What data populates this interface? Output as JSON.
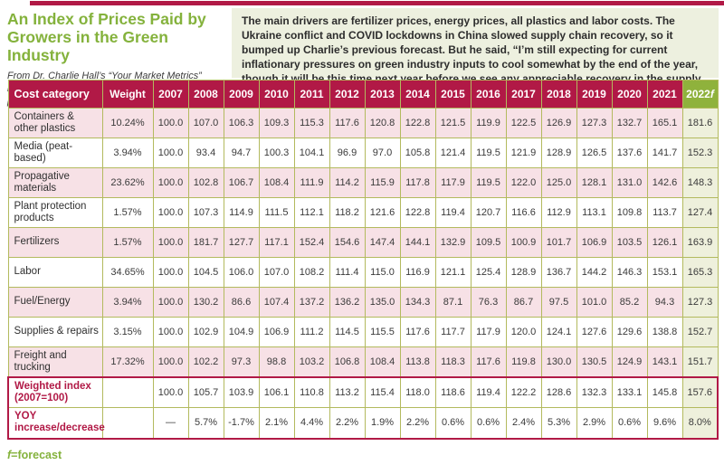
{
  "header": {
    "title": "An Index of Prices Paid by Growers in the Green Industry",
    "subtitle": "From Dr. Charlie Hall’s “Your Market Metrics” report (yourmarketmetrics.com), used with his permission",
    "paragraph": "The main drivers are fertilizer prices, energy prices, all plastics and labor costs. The Ukraine conflict and COVID lockdowns in China slowed supply chain recovery, so it bumped up Charlie’s previous forecast. But he said, “I’m still expecting for current inflationary pressures on green industry inputs to cool somewhat by the end of the year, though it will be this time next year before we see any appreciable recovery in the supply chain.”"
  },
  "colors": {
    "accent_crimson": "#b11946",
    "accent_green": "#84b23c",
    "forecast_header_green": "#8fb23c",
    "row_pink": "#f7e1e6",
    "forecast_cell_tint": "#eef0dc",
    "intro_bg": "#edf0df",
    "grid_olive": "#b3ba5e"
  },
  "chart_data": {
    "type": "table",
    "title": "An Index of Prices Paid by Growers in the Green Industry",
    "columns": [
      "Cost category",
      "Weight",
      "2007",
      "2008",
      "2009",
      "2010",
      "2011",
      "2012",
      "2013",
      "2014",
      "2015",
      "2016",
      "2017",
      "2018",
      "2019",
      "2020",
      "2021",
      "2022f"
    ],
    "rows": [
      {
        "label": "Containers & other plastics",
        "weight": "10.24%",
        "values": [
          "100.0",
          "107.0",
          "106.3",
          "109.3",
          "115.3",
          "117.6",
          "120.8",
          "122.8",
          "121.5",
          "119.9",
          "122.5",
          "126.9",
          "127.3",
          "132.7",
          "165.1",
          "181.6"
        ]
      },
      {
        "label": "Media (peat-based)",
        "weight": "3.94%",
        "values": [
          "100.0",
          "93.4",
          "94.7",
          "100.3",
          "104.1",
          "96.9",
          "97.0",
          "105.8",
          "121.4",
          "119.5",
          "121.9",
          "128.9",
          "126.5",
          "137.6",
          "141.7",
          "152.3"
        ]
      },
      {
        "label": "Propagative materials",
        "weight": "23.62%",
        "values": [
          "100.0",
          "102.8",
          "106.7",
          "108.4",
          "111.9",
          "114.2",
          "115.9",
          "117.8",
          "117.9",
          "119.5",
          "122.0",
          "125.0",
          "128.1",
          "131.0",
          "142.6",
          "148.3"
        ]
      },
      {
        "label": "Plant protection products",
        "weight": "1.57%",
        "values": [
          "100.0",
          "107.3",
          "114.9",
          "111.5",
          "112.1",
          "118.2",
          "121.6",
          "122.8",
          "119.4",
          "120.7",
          "116.6",
          "112.9",
          "113.1",
          "109.8",
          "113.7",
          "127.4"
        ]
      },
      {
        "label": "Fertilizers",
        "weight": "1.57%",
        "values": [
          "100.0",
          "181.7",
          "127.7",
          "117.1",
          "152.4",
          "154.6",
          "147.4",
          "144.1",
          "132.9",
          "109.5",
          "100.9",
          "101.7",
          "106.9",
          "103.5",
          "126.1",
          "163.9"
        ]
      },
      {
        "label": "Labor",
        "weight": "34.65%",
        "values": [
          "100.0",
          "104.5",
          "106.0",
          "107.0",
          "108.2",
          "111.4",
          "115.0",
          "116.9",
          "121.1",
          "125.4",
          "128.9",
          "136.7",
          "144.2",
          "146.3",
          "153.1",
          "165.3"
        ]
      },
      {
        "label": "Fuel/Energy",
        "weight": "3.94%",
        "values": [
          "100.0",
          "130.2",
          "86.6",
          "107.4",
          "137.2",
          "136.2",
          "135.0",
          "134.3",
          "87.1",
          "76.3",
          "86.7",
          "97.5",
          "101.0",
          "85.2",
          "94.3",
          "127.3"
        ]
      },
      {
        "label": "Supplies & repairs",
        "weight": "3.15%",
        "values": [
          "100.0",
          "102.9",
          "104.9",
          "106.9",
          "111.2",
          "114.5",
          "115.5",
          "117.6",
          "117.7",
          "117.9",
          "120.0",
          "124.1",
          "127.6",
          "129.6",
          "138.8",
          "152.7"
        ]
      },
      {
        "label": "Freight and trucking",
        "weight": "17.32%",
        "values": [
          "100.0",
          "102.2",
          "97.3",
          "98.8",
          "103.2",
          "106.8",
          "108.4",
          "113.8",
          "118.3",
          "117.6",
          "119.8",
          "130.0",
          "130.5",
          "124.9",
          "143.1",
          "151.7"
        ]
      }
    ],
    "summary_rows": [
      {
        "label": "Weighted index (2007=100)",
        "weight": "",
        "values": [
          "100.0",
          "105.7",
          "103.9",
          "106.1",
          "110.8",
          "113.2",
          "115.4",
          "118.0",
          "118.6",
          "119.4",
          "122.2",
          "128.6",
          "132.3",
          "133.1",
          "145.8",
          "157.6"
        ]
      },
      {
        "label": "YOY increase/decrease",
        "weight": "",
        "values": [
          "—",
          "5.7%",
          "-1.7%",
          "2.1%",
          "4.4%",
          "2.2%",
          "1.9%",
          "2.2%",
          "0.6%",
          "0.6%",
          "2.4%",
          "5.3%",
          "2.9%",
          "0.6%",
          "9.6%",
          "8.0%"
        ]
      }
    ]
  },
  "footnote": {
    "symbol": "f",
    "rest": "=forecast"
  }
}
